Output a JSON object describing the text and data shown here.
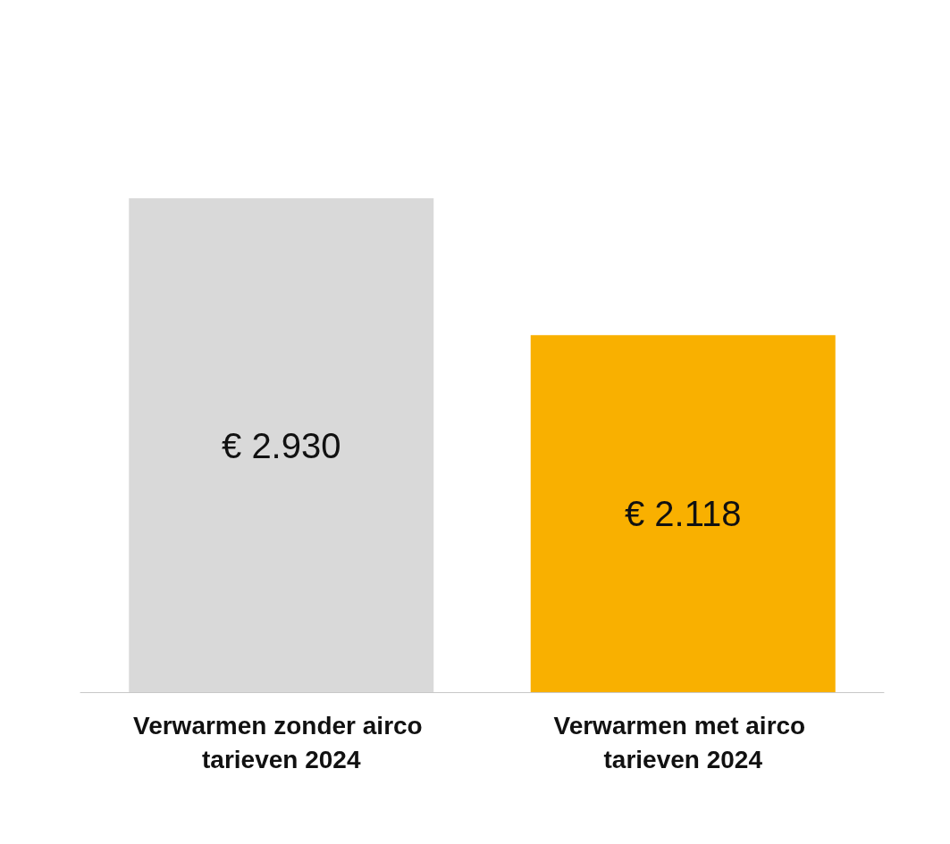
{
  "chart_data": {
    "type": "bar",
    "categories": [
      "Verwarmen zonder airco tarieven 2024",
      "Verwarmen met airco tarieven 2024"
    ],
    "values": [
      2930,
      2118
    ],
    "colors": [
      "#d9d9d9",
      "#f9b000"
    ],
    "value_labels": [
      "€ 2.930",
      "€ 2.118"
    ]
  }
}
